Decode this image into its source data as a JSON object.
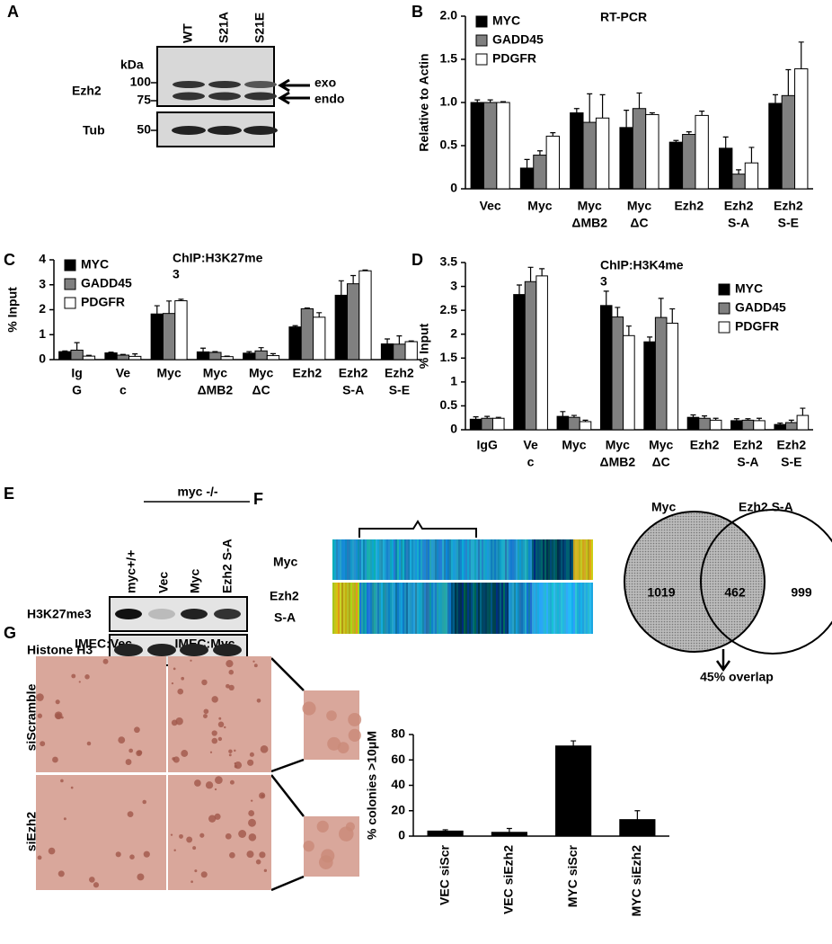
{
  "panel_labels": [
    "A",
    "B",
    "C",
    "D",
    "E",
    "F",
    "G"
  ],
  "blot_a": {
    "kda": "kDa",
    "lanes": [
      "WT",
      "S21A",
      "S21E"
    ],
    "rows": [
      "Ezh2",
      "Tub"
    ],
    "markers": [
      100,
      75,
      50
    ],
    "arrows": [
      "exo",
      "endo"
    ]
  },
  "blot_e": {
    "group": "myc -/-",
    "lanes": [
      "myc+/+",
      "Vec",
      "Myc",
      "Ezh2 S-A"
    ],
    "rows": [
      "H3K27me3",
      "Histone H3"
    ]
  },
  "heatmap_f": {
    "rows": [
      [
        "Myc"
      ],
      [
        "Ezh2",
        "S-A"
      ]
    ]
  },
  "venn_f": {
    "sets": [
      "Myc",
      "Ezh2 S-A"
    ],
    "counts": [
      1019,
      462,
      999
    ],
    "note": "45% overlap"
  },
  "images_g": {
    "columns": [
      "IMEC:Vec",
      "IMEC:Myc"
    ],
    "rows": [
      "siScramble",
      "siEzh2"
    ]
  },
  "chart_data": [
    {
      "type": "bar",
      "title": "RT-PCR",
      "ylabel": "Relative to Actin",
      "legend": "upper left",
      "categories": [
        [
          "Vec"
        ],
        [
          "Myc"
        ],
        [
          "Myc",
          "ΔMB2"
        ],
        [
          "Myc",
          "ΔC"
        ],
        [
          "Ezh2"
        ],
        [
          "Ezh2",
          "S-A"
        ],
        [
          "Ezh2",
          "S-E"
        ]
      ],
      "series": [
        {
          "name": "MYC",
          "color": "#000000",
          "values": [
            1.0,
            0.24,
            0.88,
            0.71,
            0.54,
            0.47,
            0.99
          ],
          "errors": [
            0.03,
            0.1,
            0.05,
            0.2,
            0.02,
            0.13,
            0.1
          ]
        },
        {
          "name": "GADD45",
          "color": "#808080",
          "values": [
            1.0,
            0.39,
            0.77,
            0.93,
            0.63,
            0.17,
            1.08
          ],
          "errors": [
            0.03,
            0.05,
            0.33,
            0.18,
            0.03,
            0.05,
            0.3
          ]
        },
        {
          "name": "PDGFR",
          "color": "#ffffff",
          "values": [
            1.0,
            0.61,
            0.82,
            0.86,
            0.85,
            0.3,
            1.39
          ],
          "errors": [
            0.01,
            0.04,
            0.27,
            0.02,
            0.05,
            0.18,
            0.31
          ]
        }
      ],
      "ylim": [
        0,
        2
      ],
      "yticks": [
        0,
        0.5,
        {
          "value": 1,
          "label": "1.0"
        },
        1.5,
        {
          "value": 2,
          "label": "2.0"
        }
      ]
    },
    {
      "type": "bar",
      "title": [
        "ChIP:H3K27me",
        "3"
      ],
      "ylabel": "% Input",
      "legend": "upper left",
      "categories": [
        [
          "Ig",
          "G"
        ],
        [
          "Ve",
          "c"
        ],
        [
          "Myc"
        ],
        [
          "Myc",
          "ΔMB2"
        ],
        [
          "Myc",
          "ΔC"
        ],
        [
          "Ezh2"
        ],
        [
          "Ezh2",
          "S-A"
        ],
        [
          "Ezh2",
          "S-E"
        ]
      ],
      "series": [
        {
          "name": "MYC",
          "color": "#000000",
          "values": [
            0.32,
            0.27,
            1.83,
            0.31,
            0.26,
            1.31,
            2.58,
            0.63
          ],
          "errors": [
            0.03,
            0.03,
            0.33,
            0.15,
            0.06,
            0.05,
            0.58,
            0.2
          ]
        },
        {
          "name": "GADD45",
          "color": "#808080",
          "values": [
            0.38,
            0.18,
            1.85,
            0.29,
            0.35,
            2.04,
            3.04,
            0.62
          ],
          "errors": [
            0.3,
            0.03,
            0.5,
            0.03,
            0.13,
            0.03,
            0.33,
            0.33
          ]
        },
        {
          "name": "PDGFR",
          "color": "#ffffff",
          "values": [
            0.14,
            0.13,
            2.36,
            0.12,
            0.16,
            1.7,
            3.56,
            0.72
          ],
          "errors": [
            0.03,
            0.1,
            0.06,
            0.02,
            0.08,
            0.18,
            0.03,
            0.03
          ]
        }
      ],
      "ylim": [
        0,
        4
      ],
      "yticks": [
        0,
        1,
        2,
        3,
        4
      ]
    },
    {
      "type": "bar",
      "title": [
        "ChIP:H3K4me",
        "3"
      ],
      "ylabel": "% Input",
      "legend": "upper right",
      "categories": [
        [
          "IgG"
        ],
        [
          "Ve",
          "c"
        ],
        [
          "Myc"
        ],
        [
          "Myc",
          "ΔMB2"
        ],
        [
          "Myc",
          "ΔC"
        ],
        [
          "Ezh2"
        ],
        [
          "Ezh2",
          "S-A"
        ],
        [
          "Ezh2",
          "S-E"
        ]
      ],
      "series": [
        {
          "name": "MYC",
          "color": "#000000",
          "values": [
            0.22,
            2.83,
            0.28,
            2.6,
            1.84,
            0.26,
            0.19,
            0.11
          ],
          "errors": [
            0.05,
            0.2,
            0.1,
            0.3,
            0.1,
            0.05,
            0.04,
            0.03
          ]
        },
        {
          "name": "GADD45",
          "color": "#808080",
          "values": [
            0.24,
            3.1,
            0.26,
            2.36,
            2.35,
            0.24,
            0.2,
            0.15
          ],
          "errors": [
            0.04,
            0.3,
            0.04,
            0.2,
            0.4,
            0.05,
            0.03,
            0.05
          ]
        },
        {
          "name": "PDGFR",
          "color": "#ffffff",
          "values": [
            0.24,
            3.22,
            0.17,
            1.97,
            2.23,
            0.2,
            0.19,
            0.3
          ],
          "errors": [
            0.02,
            0.15,
            0.03,
            0.2,
            0.3,
            0.04,
            0.05,
            0.15
          ]
        }
      ],
      "ylim": [
        0,
        3.5
      ],
      "yticks": [
        0,
        0.5,
        1,
        1.5,
        2,
        2.5,
        3,
        3.5
      ]
    },
    {
      "type": "bar",
      "ylabel": "% colonies >10μM",
      "categories": [
        [
          "VEC siScr"
        ],
        [
          "VEC siEzh2"
        ],
        [
          "MYC siScr"
        ],
        [
          "MYC siEzh2"
        ]
      ],
      "values": [
        4,
        3,
        71,
        13
      ],
      "errors": [
        1,
        3,
        4,
        7
      ],
      "color": "#000000",
      "ylim": [
        0,
        80
      ],
      "yticks": [
        0,
        20,
        40,
        60,
        80
      ]
    }
  ]
}
